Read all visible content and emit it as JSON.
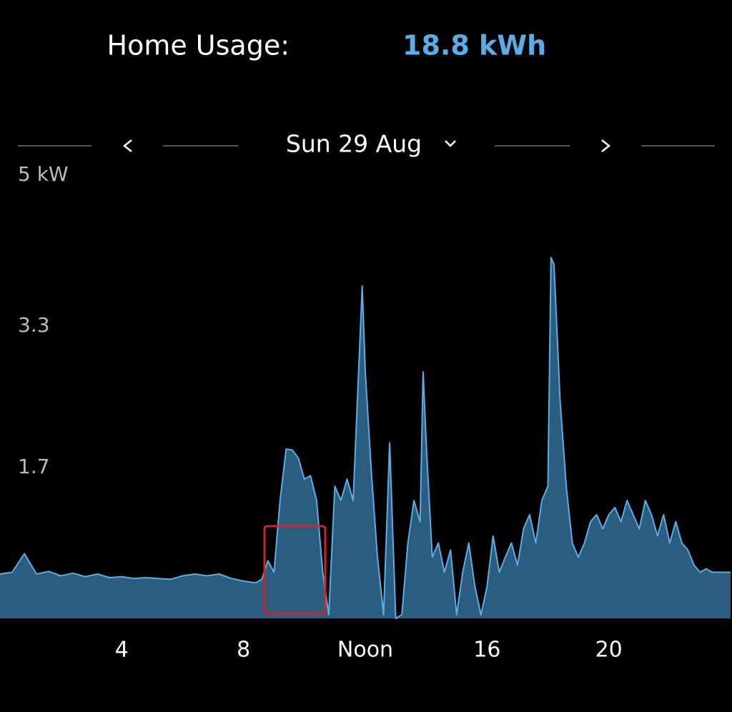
{
  "chart_data": {
    "type": "area",
    "title": "Home Usage:",
    "total": "18.8 kWh",
    "subtitle": "Sun 29 Aug",
    "x": [
      0,
      0.4,
      0.8,
      1.2,
      1.6,
      2.0,
      2.4,
      2.8,
      3.2,
      3.6,
      4.0,
      4.4,
      4.8,
      5.2,
      5.6,
      6.0,
      6.4,
      6.8,
      7.2,
      7.6,
      8.0,
      8.4,
      8.6,
      8.8,
      9.0,
      9.2,
      9.4,
      9.6,
      9.8,
      10.0,
      10.2,
      10.4,
      10.6,
      10.8,
      11.0,
      11.2,
      11.4,
      11.6,
      11.8,
      11.9,
      12.0,
      12.2,
      12.4,
      12.6,
      12.8,
      13.0,
      13.2,
      13.4,
      13.6,
      13.8,
      13.9,
      14.0,
      14.2,
      14.4,
      14.6,
      14.8,
      15.0,
      15.2,
      15.4,
      15.6,
      15.8,
      16.0,
      16.2,
      16.4,
      16.6,
      16.8,
      17.0,
      17.2,
      17.4,
      17.6,
      17.8,
      18.0,
      18.1,
      18.2,
      18.4,
      18.6,
      18.8,
      19.0,
      19.2,
      19.4,
      19.6,
      19.8,
      20.0,
      20.2,
      20.4,
      20.6,
      20.8,
      21.0,
      21.2,
      21.4,
      21.6,
      21.8,
      22.0,
      22.2,
      22.4,
      22.6,
      22.8,
      23.0,
      23.2,
      23.4,
      23.6,
      23.8,
      24.0
    ],
    "values": [
      0.5,
      0.52,
      0.73,
      0.5,
      0.53,
      0.48,
      0.51,
      0.47,
      0.5,
      0.46,
      0.47,
      0.45,
      0.46,
      0.45,
      0.44,
      0.48,
      0.5,
      0.48,
      0.5,
      0.45,
      0.42,
      0.4,
      0.44,
      0.65,
      0.52,
      1.33,
      1.91,
      1.9,
      1.81,
      1.57,
      1.61,
      1.33,
      0.52,
      0.04,
      1.49,
      1.33,
      1.57,
      1.33,
      2.94,
      3.75,
      2.78,
      1.65,
      0.69,
      0.04,
      1.98,
      0,
      0.04,
      0.85,
      1.33,
      1.09,
      2.78,
      1.98,
      0.69,
      0.85,
      0.52,
      0.77,
      0.04,
      0.52,
      0.85,
      0.36,
      0.04,
      0.36,
      0.93,
      0.52,
      0.69,
      0.85,
      0.6,
      1.01,
      1.17,
      0.85,
      1.33,
      1.49,
      4.07,
      3.99,
      2.46,
      1.49,
      0.85,
      0.69,
      0.85,
      1.09,
      1.17,
      1.01,
      1.17,
      1.25,
      1.09,
      1.33,
      1.17,
      1.01,
      1.33,
      1.17,
      0.93,
      1.17,
      0.85,
      1.09,
      0.85,
      0.77,
      0.6,
      0.52,
      0.56,
      0.52,
      0.52,
      0.52,
      0.52
    ],
    "color": "#5aaee8",
    "fill": "#2a5d80",
    "xlim": [
      0,
      24
    ],
    "xticks": [
      4,
      8,
      {
        "value": 12,
        "label": "Noon"
      },
      16,
      20
    ],
    "ylim": [
      0,
      5
    ],
    "yticks": [
      {
        "value": 5,
        "label": "5 kW"
      },
      3.3,
      1.7
    ]
  }
}
